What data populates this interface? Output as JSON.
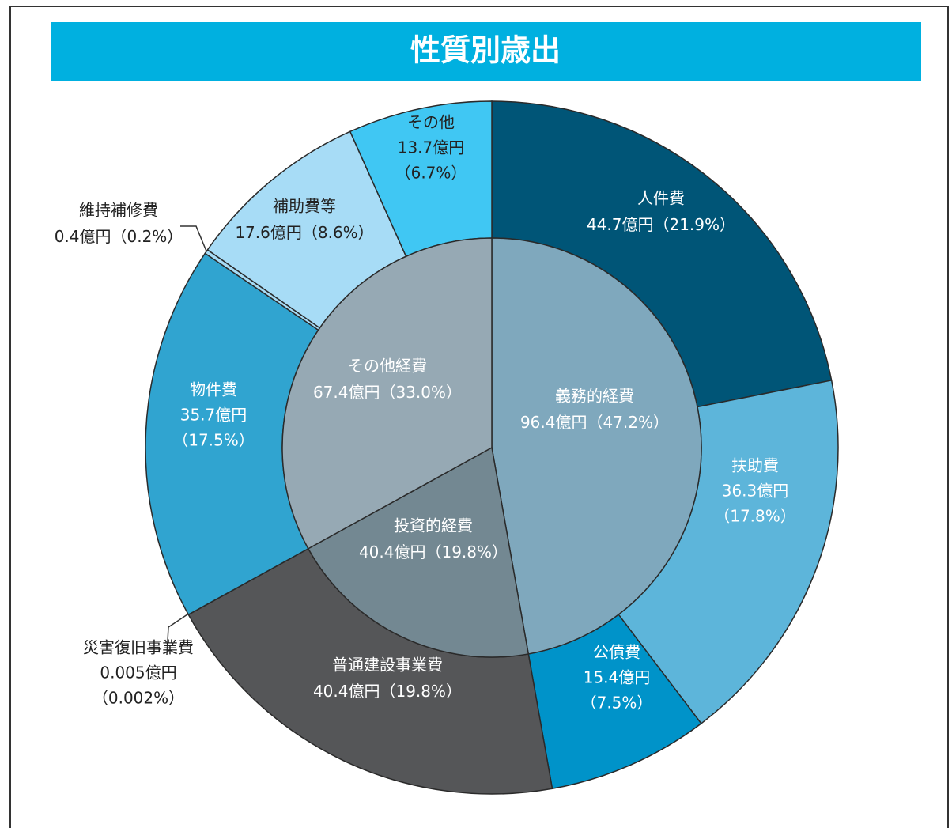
{
  "chart_data": {
    "type": "sunburst",
    "title": "性質別歳出",
    "inner": {
      "names": [
        "義務的経費",
        "投資的経費",
        "その他経費"
      ],
      "values": [
        96.4,
        40.4,
        67.4
      ],
      "value_labels": [
        "96.4億円",
        "40.4億円",
        "67.4億円"
      ],
      "percents": [
        47.2,
        19.8,
        33.0
      ],
      "percent_labels": [
        "（47.2%）",
        "（19.8%）",
        "（33.0%）"
      ],
      "colors": [
        "#7fa8bd",
        "#738892",
        "#96a9b4"
      ]
    },
    "outer": {
      "names": [
        "人件費",
        "扶助費",
        "公債費",
        "普通建設事業費",
        "災害復旧事業費",
        "物件費",
        "維持補修費",
        "補助費等",
        "その他"
      ],
      "values": [
        44.7,
        36.3,
        15.4,
        40.4,
        0.005,
        35.7,
        0.4,
        17.6,
        13.7
      ],
      "value_labels": [
        "44.7億円",
        "36.3億円",
        "15.4億円",
        "40.4億円",
        "0.005億円",
        "35.7億円",
        "0.4億円",
        "17.6億円",
        "13.7億円"
      ],
      "percents": [
        21.9,
        17.8,
        7.5,
        19.8,
        0.002,
        17.5,
        0.2,
        8.6,
        6.7
      ],
      "percent_labels": [
        "（21.9%）",
        "（17.8%）",
        "（7.5%）",
        "（19.8%）",
        "（0.002%）",
        "（17.5%）",
        "（0.2%）",
        "（8.6%）",
        "（6.7%）"
      ],
      "colors": [
        "#005577",
        "#5db5da",
        "#0093c9",
        "#555658",
        "#555658",
        "#30a4d0",
        "#a7dcf6",
        "#a7dcf6",
        "#40c7f3"
      ]
    }
  }
}
